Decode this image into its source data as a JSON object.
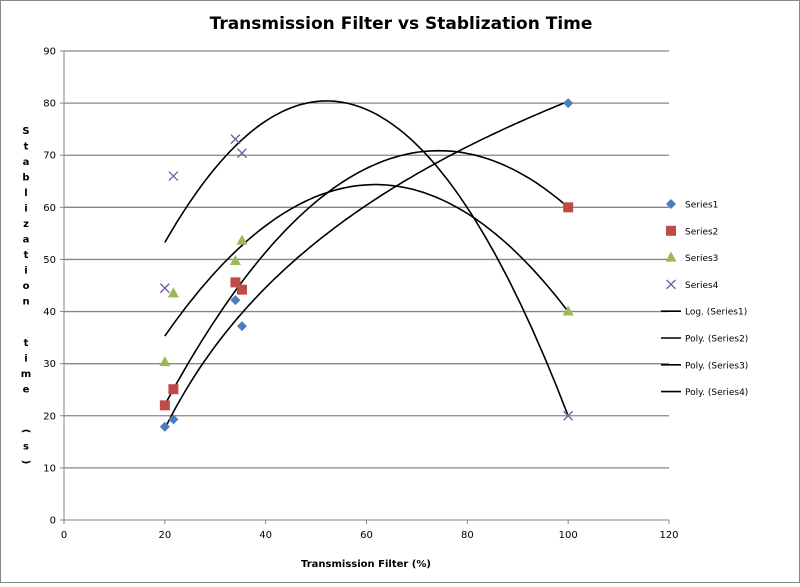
{
  "chart_data": {
    "type": "scatter",
    "title": "Transmission Filter vs Stablization Time",
    "xlabel": "Transmission Filter (%)",
    "ylabel": "Stablization time (s)",
    "xlim": [
      0,
      120
    ],
    "ylim": [
      0,
      90
    ],
    "xticks": [
      0,
      20,
      40,
      60,
      80,
      100,
      120
    ],
    "yticks": [
      0,
      10,
      20,
      30,
      40,
      50,
      60,
      70,
      80,
      90
    ],
    "grid": "horizontal major gridlines",
    "legend_position": "right",
    "series": [
      {
        "name": "Series1",
        "marker": "diamond",
        "color": "#4a7ebb",
        "x": [
          20,
          21.7,
          34,
          35.3,
          100
        ],
        "y": [
          17.9,
          19.3,
          42.2,
          37.2,
          80
        ]
      },
      {
        "name": "Series2",
        "marker": "square",
        "color": "#be4b48",
        "x": [
          20,
          21.7,
          34,
          35.3,
          100
        ],
        "y": [
          22,
          25.1,
          45.6,
          44.2,
          60
        ]
      },
      {
        "name": "Series3",
        "marker": "triangle",
        "color": "#98b954",
        "x": [
          20,
          21.7,
          34,
          35.3,
          100
        ],
        "y": [
          30.3,
          43.5,
          49.7,
          53.6,
          40
        ]
      },
      {
        "name": "Series4",
        "marker": "x",
        "color": "#7d60a0",
        "x": [
          20,
          21.7,
          34,
          35.3,
          100
        ],
        "y": [
          44.5,
          66,
          73.1,
          70.4,
          20
        ]
      }
    ],
    "trendlines": [
      {
        "name": "Log. (Series1)",
        "type": "log",
        "series": 0,
        "color": "#000000"
      },
      {
        "name": "Poly. (Series2)",
        "type": "poly2",
        "series": 1,
        "color": "#000000"
      },
      {
        "name": "Poly. (Series3)",
        "type": "poly2",
        "series": 2,
        "color": "#000000"
      },
      {
        "name": "Poly. (Series4)",
        "type": "poly2",
        "series": 3,
        "color": "#000000"
      }
    ]
  }
}
